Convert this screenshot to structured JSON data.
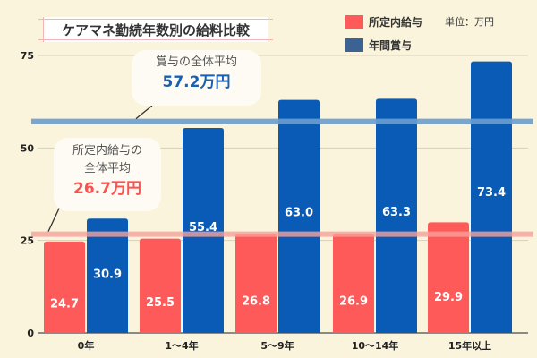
{
  "chart_data": {
    "type": "bar",
    "title": "ケアマネ勤続年数別の給料比較",
    "unit_note": "単位：万円",
    "categories": [
      "0年",
      "1〜4年",
      "5〜9年",
      "10〜14年",
      "15年以上"
    ],
    "series": [
      {
        "name": "所定内給与",
        "color": "#ff5a5a",
        "values": [
          24.7,
          25.5,
          26.8,
          26.9,
          29.9
        ]
      },
      {
        "name": "年間賞与",
        "color": "#0a5bb5",
        "legend_color": "#3b6293",
        "values": [
          30.9,
          55.4,
          63.0,
          63.3,
          73.4
        ]
      }
    ],
    "ylim": [
      0,
      75
    ],
    "yticks": [
      "0",
      "25",
      "50",
      "75"
    ],
    "grid": true,
    "legend": "top-right",
    "reference_lines": [
      {
        "series": "年間賞与",
        "value": 57.2,
        "color": "#6a9dcf",
        "label": "賞与の全体平均",
        "value_label": "57.2万円",
        "label_color": "#1a5fb4"
      },
      {
        "series": "所定内給与",
        "value": 26.7,
        "color": "#f7a09a",
        "label_line1": "所定内給与の",
        "label_line2": "全体平均",
        "value_label": "26.7万円",
        "label_color": "#ff5050"
      }
    ]
  }
}
